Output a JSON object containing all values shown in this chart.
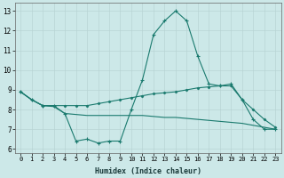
{
  "xlabel": "Humidex (Indice chaleur)",
  "bg_color": "#cce8e8",
  "line_color": "#1a7a6e",
  "grid_color": "#b8d4d4",
  "xlim": [
    -0.5,
    23.5
  ],
  "ylim": [
    5.8,
    13.4
  ],
  "yticks": [
    6,
    7,
    8,
    9,
    10,
    11,
    12,
    13
  ],
  "xticks": [
    0,
    1,
    2,
    3,
    4,
    5,
    6,
    7,
    8,
    9,
    10,
    11,
    12,
    13,
    14,
    15,
    16,
    17,
    18,
    19,
    20,
    21,
    22,
    23
  ],
  "line1_x": [
    0,
    1,
    2,
    3,
    4,
    5,
    6,
    7,
    8,
    9,
    10,
    11,
    12,
    13,
    14,
    15,
    16,
    17,
    18,
    19,
    20,
    21,
    22,
    23
  ],
  "line1_y": [
    8.9,
    8.5,
    8.2,
    8.2,
    7.8,
    6.4,
    6.5,
    6.3,
    6.4,
    6.4,
    8.0,
    9.5,
    11.8,
    12.5,
    13.0,
    12.5,
    10.7,
    9.3,
    9.2,
    9.3,
    8.5,
    7.5,
    7.0,
    7.0
  ],
  "line2_x": [
    0,
    1,
    2,
    3,
    4,
    5,
    6,
    7,
    8,
    9,
    10,
    11,
    12,
    13,
    14,
    15,
    16,
    17,
    18,
    19,
    20,
    21,
    22,
    23
  ],
  "line2_y": [
    8.9,
    8.5,
    8.2,
    8.2,
    8.2,
    8.2,
    8.2,
    8.3,
    8.4,
    8.5,
    8.6,
    8.7,
    8.8,
    8.85,
    8.9,
    9.0,
    9.1,
    9.15,
    9.2,
    9.2,
    8.5,
    8.0,
    7.5,
    7.1
  ],
  "line3_x": [
    0,
    1,
    2,
    3,
    4,
    5,
    6,
    7,
    8,
    9,
    10,
    11,
    12,
    13,
    14,
    15,
    16,
    17,
    18,
    19,
    20,
    21,
    22,
    23
  ],
  "line3_y": [
    8.9,
    8.5,
    8.2,
    8.15,
    7.8,
    7.75,
    7.7,
    7.7,
    7.7,
    7.7,
    7.7,
    7.7,
    7.65,
    7.6,
    7.6,
    7.55,
    7.5,
    7.45,
    7.4,
    7.35,
    7.3,
    7.2,
    7.1,
    7.0
  ]
}
